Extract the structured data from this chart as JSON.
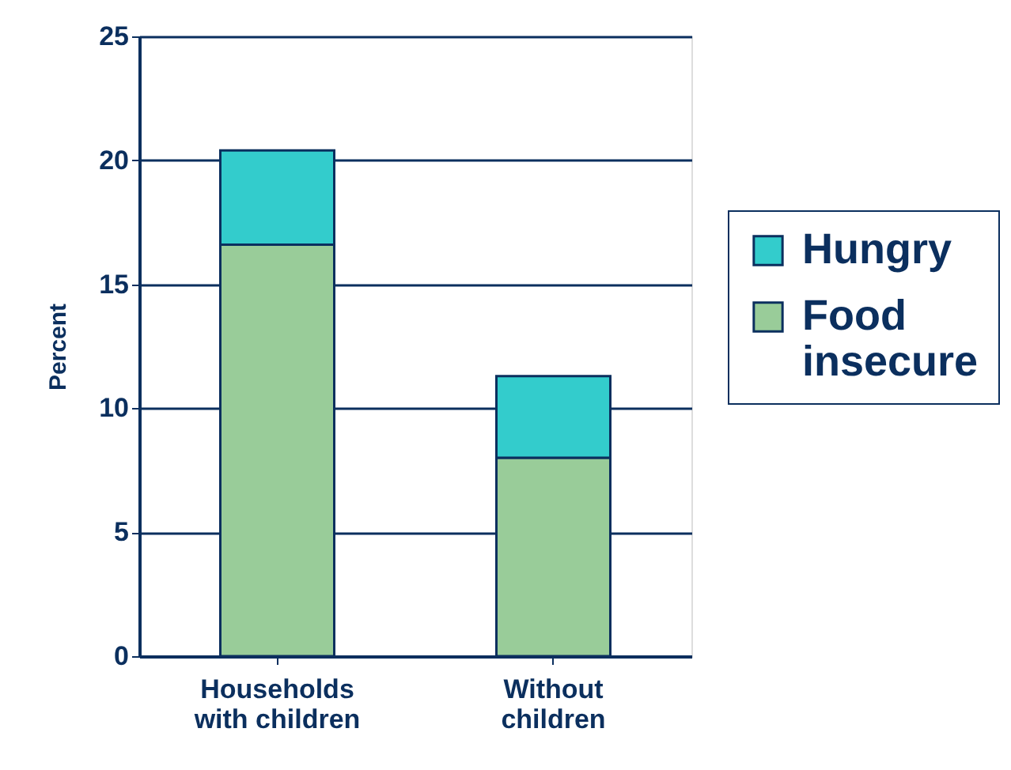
{
  "chart_data": {
    "type": "bar",
    "stacked": true,
    "ylabel": "Percent",
    "categories": [
      "Households with children",
      "Without children"
    ],
    "series": [
      {
        "name": "Food insecure",
        "color": "#99cc99",
        "values": [
          16.6,
          8.0
        ]
      },
      {
        "name": "Hungry",
        "color": "#33cccc",
        "values": [
          3.8,
          3.3
        ]
      }
    ],
    "ylim": [
      0,
      25
    ],
    "yticks": [
      0,
      5,
      10,
      15,
      20,
      25
    ],
    "grid": "y",
    "legend": "right"
  }
}
